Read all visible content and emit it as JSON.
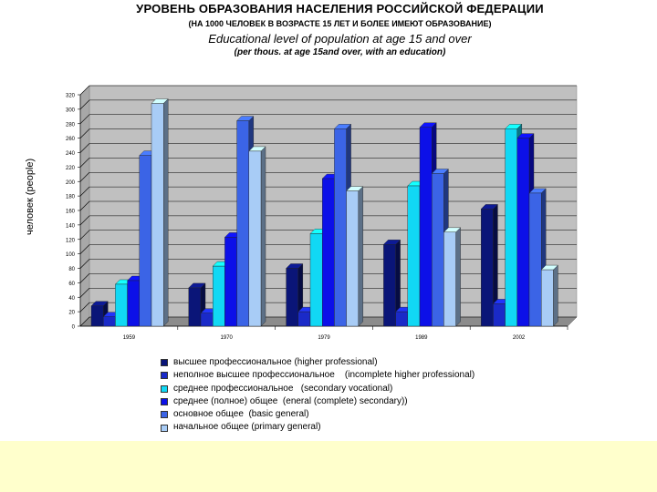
{
  "titles": {
    "line1": "УРОВЕНЬ ОБРАЗОВАНИЯ НАСЕЛЕНИЯ РОССИЙСКОЙ ФЕДЕРАЦИИ",
    "line2": "(НА 1000 ЧЕЛОВЕК В ВОЗРАСТЕ 15 ЛЕТ И БОЛЕЕ ИМЕЮТ ОБРАЗОВАНИЕ)",
    "line3": "Educational level of population at age  15 and over",
    "line4": "(per thous.  at age 15and over, with an education)"
  },
  "chart_data": {
    "type": "bar",
    "categories": [
      "1959",
      "1970",
      "1979",
      "1989",
      "2002"
    ],
    "ylabel": "человек\n(people)",
    "ylim": [
      0,
      320
    ],
    "yticks": [
      0,
      20,
      40,
      60,
      80,
      100,
      120,
      140,
      160,
      180,
      200,
      220,
      240,
      260,
      280,
      300,
      320
    ],
    "grid": true,
    "legend_position": "bottom",
    "series": [
      {
        "name": "высшее профессиональное (higher professional)",
        "color": "#0a1578",
        "values": [
          28,
          53,
          80,
          113,
          162
        ]
      },
      {
        "name": "неполное высшее профессиональное    (incomplete higher professional)",
        "color": "#1a2ac8",
        "values": [
          13,
          18,
          20,
          20,
          31
        ]
      },
      {
        "name": "среднее профессиональное   (secondary vocational)",
        "color": "#11d8f4",
        "values": [
          58,
          83,
          128,
          194,
          273
        ]
      },
      {
        "name": "среднее (полное) общее  (eneral (complete) secondary))",
        "color": "#0c10e8",
        "values": [
          63,
          123,
          204,
          275,
          260
        ]
      },
      {
        "name": "основное общее  (basic general)",
        "color": "#3b64e6",
        "values": [
          236,
          284,
          273,
          211,
          184
        ]
      },
      {
        "name": "начальное общее (primary general)",
        "color": "#a8ccf6",
        "values": [
          308,
          242,
          187,
          130,
          78
        ]
      }
    ]
  }
}
